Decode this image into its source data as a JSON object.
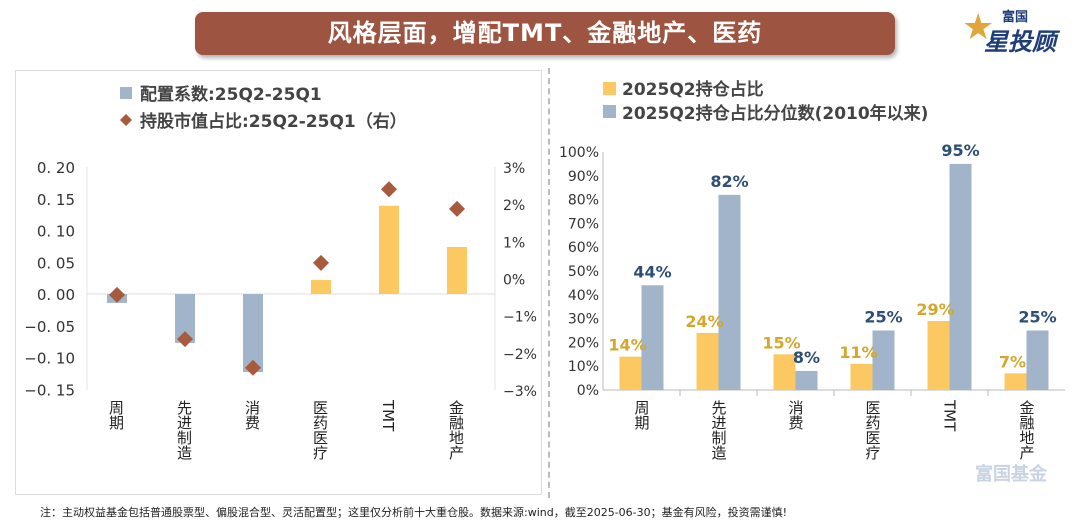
{
  "title": "风格层面，增配TMT、金融地产、医药",
  "logo": {
    "small": "富国",
    "big": "星投顾"
  },
  "watermark": "富国基金",
  "footnote": "注：主动权益基金包括普通股票型、偏股混合型、灵活配置型；这里仅分析前十大重仓股。数据来源:wind，截至2025-06-30；基金有风险，投资需谨慎!",
  "colors": {
    "yellow": "#fcc862",
    "blue": "#a1b4c9",
    "diamond": "#a85a3c",
    "yellow_label": "#d4a72c",
    "blue_label": "#2d4e75",
    "banner": "#9d5440"
  },
  "chart_data": [
    {
      "type": "bar+scatter",
      "categories": [
        "周期",
        "先进制造",
        "消费",
        "医药医疗",
        "TMT",
        "金融地产"
      ],
      "series": [
        {
          "name": "配置系数:25Q2-25Q1",
          "axis": "left",
          "values": [
            -0.014,
            -0.077,
            -0.123,
            0.022,
            0.139,
            0.074
          ]
        },
        {
          "name": "持股市值占比:25Q2-25Q1（右）",
          "axis": "right",
          "marker": "diamond",
          "values": [
            -0.44,
            -1.63,
            -2.4,
            0.42,
            2.4,
            1.87
          ]
        }
      ],
      "ylim_left": [
        -0.15,
        0.2
      ],
      "yticks_left": [
        "0. 20",
        "0. 15",
        "0. 10",
        "0. 05",
        "0. 00",
        "−0. 05",
        "−0. 10",
        "−0. 15"
      ],
      "ylim_right": [
        -3,
        3
      ],
      "yticks_right": [
        "3%",
        "2%",
        "1%",
        "0%",
        "−1%",
        "−2%",
        "−3%"
      ],
      "bar_colors": "positive yellow, negative blue",
      "legend": "top"
    },
    {
      "type": "bar",
      "categories": [
        "周期",
        "先进制造",
        "消费",
        "医药医疗",
        "TMT",
        "金融地产"
      ],
      "series": [
        {
          "name": "2025Q2持仓占比",
          "values": [
            14,
            24,
            15,
            11,
            29,
            7
          ],
          "labels": [
            "14%",
            "24%",
            "15%",
            "11%",
            "29%",
            "7%"
          ]
        },
        {
          "name": "2025Q2持仓占比分位数(2010年以来)",
          "values": [
            44,
            82,
            8,
            25,
            95,
            25
          ],
          "labels": [
            "44%",
            "82%",
            "8%",
            "25%",
            "95%",
            "25%"
          ]
        }
      ],
      "ylim": [
        0,
        100
      ],
      "yticks": [
        "100%",
        "90%",
        "80%",
        "70%",
        "60%",
        "50%",
        "40%",
        "30%",
        "20%",
        "10%",
        "0%"
      ],
      "legend": "top"
    }
  ]
}
